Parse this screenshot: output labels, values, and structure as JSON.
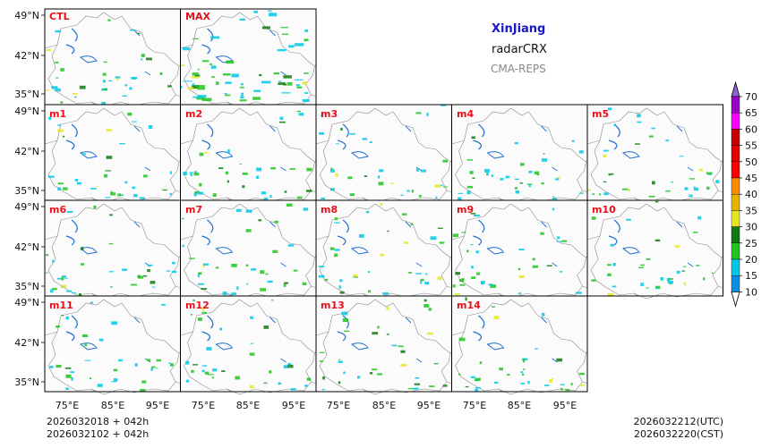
{
  "header": {
    "region": "XinJiang",
    "variable": "radarCRX",
    "model": "CMA-REPS"
  },
  "panels": [
    {
      "label": "CTL"
    },
    {
      "label": "MAX"
    },
    {
      "label": "m1"
    },
    {
      "label": "m2"
    },
    {
      "label": "m3"
    },
    {
      "label": "m4"
    },
    {
      "label": "m5"
    },
    {
      "label": "m6"
    },
    {
      "label": "m7"
    },
    {
      "label": "m8"
    },
    {
      "label": "m9"
    },
    {
      "label": "m10"
    },
    {
      "label": "m11"
    },
    {
      "label": "m12"
    },
    {
      "label": "m13"
    },
    {
      "label": "m14"
    }
  ],
  "axes": {
    "lat_ticks": [
      "49°N",
      "42°N",
      "35°N"
    ],
    "lon_ticks": [
      "75°E",
      "85°E",
      "95°E"
    ]
  },
  "colorbar": {
    "levels": [
      "70",
      "65",
      "60",
      "55",
      "50",
      "45",
      "40",
      "35",
      "30",
      "25",
      "20",
      "15",
      "10"
    ],
    "colors": [
      "#0b8fe6",
      "#00c8e6",
      "#1fc41f",
      "#0f7a0f",
      "#e6e61f",
      "#e6b400",
      "#ff8c00",
      "#ff0000",
      "#e60000",
      "#c80000",
      "#ff00ff",
      "#9b00c8",
      "#8c64d2"
    ]
  },
  "footer": {
    "init_utc": "2026032018  +  042h",
    "init_cst": "2026032102  +  042h",
    "valid_utc": "2026032212(UTC)",
    "valid_cst": "2026032220(CST)"
  }
}
